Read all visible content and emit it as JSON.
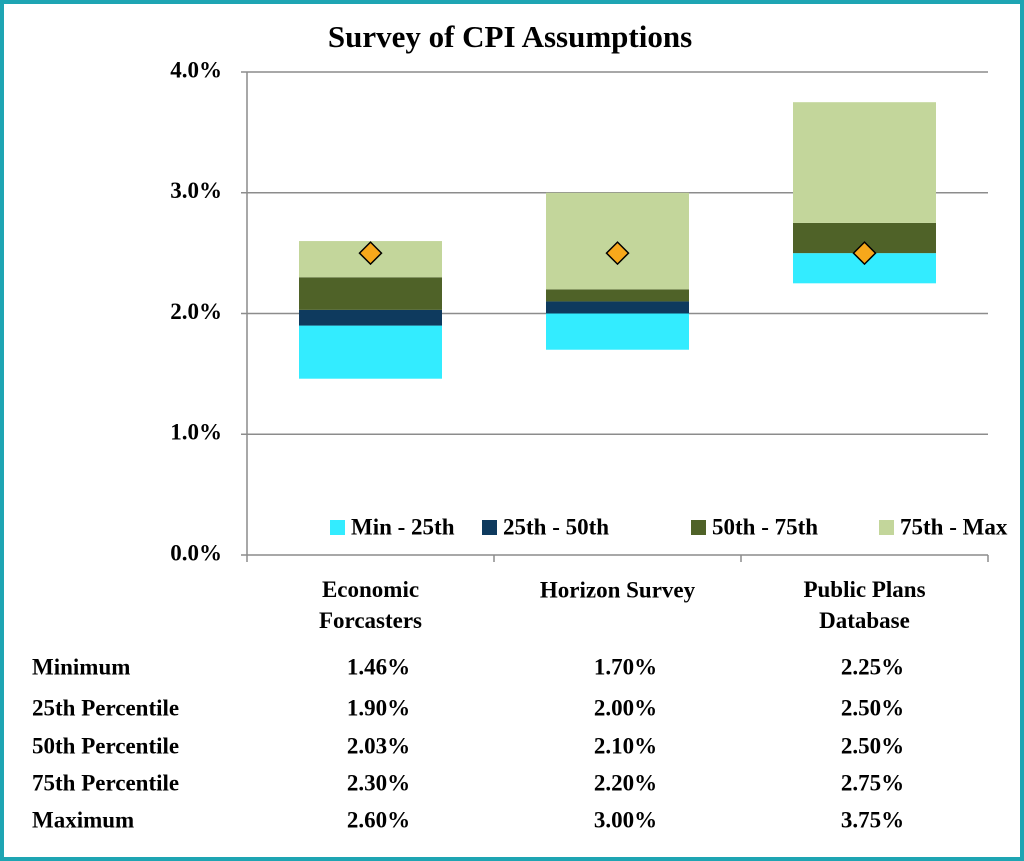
{
  "chart_data": {
    "type": "floating_bar",
    "title": "Survey of CPI Assumptions",
    "categories": [
      "Economic Forcasters",
      "Horizon Survey",
      "Public Plans Database"
    ],
    "ylim": [
      0,
      4
    ],
    "yticks": [
      {
        "value": 0,
        "label": "0.0%"
      },
      {
        "value": 1,
        "label": "1.0%"
      },
      {
        "value": 2,
        "label": "2.0%"
      },
      {
        "value": 3,
        "label": "3.0%"
      },
      {
        "value": 4,
        "label": "4.0%"
      }
    ],
    "grid": true,
    "series": [
      {
        "name": "Min - 25th",
        "color": "#33ecff"
      },
      {
        "name": "25th - 50th",
        "color": "#0e3a5e"
      },
      {
        "name": "50th - 75th",
        "color": "#4f6228"
      },
      {
        "name": "75th - Max",
        "color": "#c3d69b"
      }
    ],
    "stats": [
      {
        "name": "Minimum",
        "values": [
          1.46,
          1.7,
          2.25
        ],
        "value_labels": [
          "1.46%",
          "1.70%",
          "2.25%"
        ]
      },
      {
        "name": "25th Percentile",
        "values": [
          1.9,
          2.0,
          2.5
        ],
        "value_labels": [
          "1.90%",
          "2.00%",
          "2.50%"
        ]
      },
      {
        "name": "50th Percentile",
        "values": [
          2.03,
          2.1,
          2.5
        ],
        "value_labels": [
          "2.03%",
          "2.10%",
          "2.50%"
        ]
      },
      {
        "name": "75th Percentile",
        "values": [
          2.3,
          2.2,
          2.75
        ],
        "value_labels": [
          "2.30%",
          "2.20%",
          "2.75%"
        ]
      },
      {
        "name": "Maximum",
        "values": [
          2.6,
          3.0,
          3.75
        ],
        "value_labels": [
          "2.60%",
          "3.00%",
          "3.75%"
        ]
      }
    ],
    "markers": {
      "values": [
        2.5,
        2.5,
        2.5
      ],
      "color": "#f7a81b"
    }
  }
}
